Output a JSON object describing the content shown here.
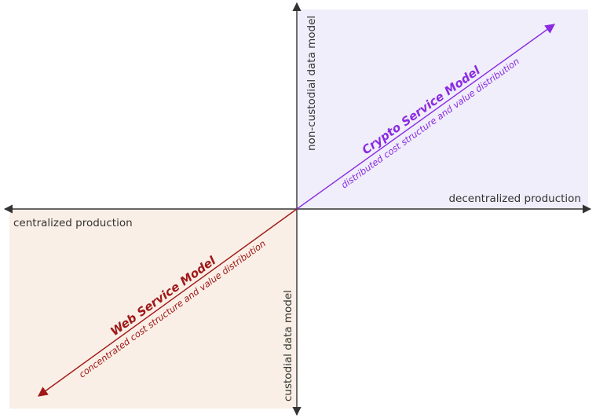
{
  "axes": {
    "left_label": "centralized production",
    "right_label": "decentralized production",
    "top_label": "non-custodial data model",
    "bottom_label": "custodial data model"
  },
  "crypto_model": {
    "title": "Crypto Service Model",
    "subtitle": "distributed cost structure and value distribution",
    "color": "#8a2be2",
    "quadrant_fill": "#efeefa"
  },
  "web_model": {
    "title": "Web Service Model",
    "subtitle": "concentrated cost structure and value distribution",
    "color": "#a01818",
    "quadrant_fill": "#f9efe6"
  },
  "axis_color": "#333333"
}
